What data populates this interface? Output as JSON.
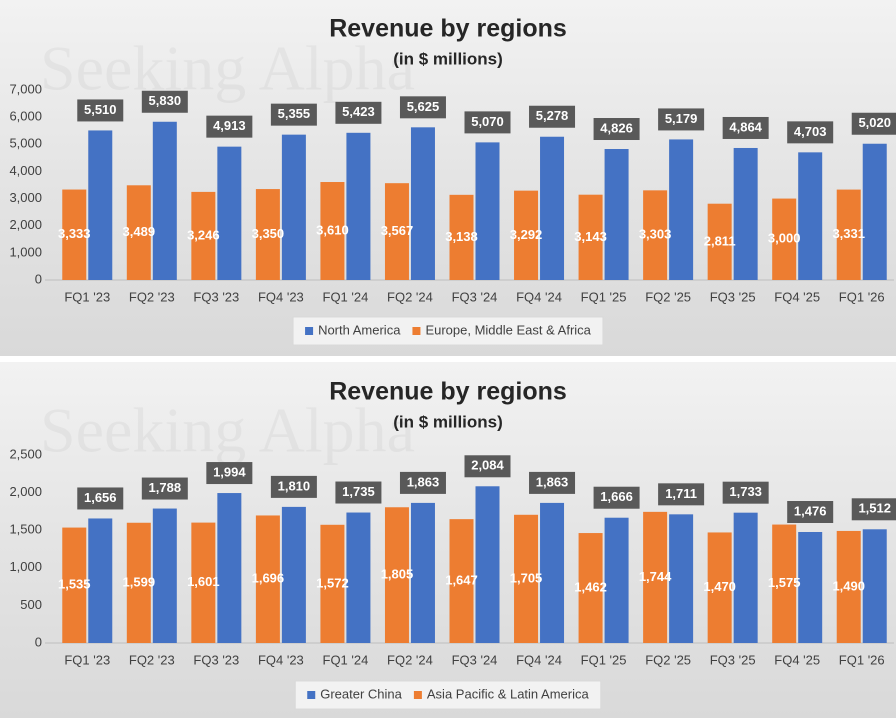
{
  "chart_data": [
    {
      "type": "bar",
      "title": "Revenue by regions",
      "subtitle": "(in $ millions)",
      "watermark": "Seeking Alpha",
      "categories": [
        "FQ1 '23",
        "FQ2 '23",
        "FQ3 '23",
        "FQ4 '23",
        "FQ1 '24",
        "FQ2 '24",
        "FQ3 '24",
        "FQ4 '24",
        "FQ1 '25",
        "FQ2 '25",
        "FQ3 '25",
        "FQ4 '25",
        "FQ1 '26"
      ],
      "series": [
        {
          "name": "North America",
          "color": "#4472c4",
          "values": [
            5510,
            5830,
            4913,
            5355,
            5423,
            5625,
            5070,
            5278,
            4826,
            5179,
            4864,
            4703,
            5020
          ],
          "value_labels": [
            "5,510",
            "5,830",
            "4,913",
            "5,355",
            "5,423",
            "5,625",
            "5,070",
            "5,278",
            "4,826",
            "5,179",
            "4,864",
            "4,703",
            "5,020"
          ]
        },
        {
          "name": "Europe, Middle East & Africa",
          "color": "#ed7d31",
          "values": [
            3333,
            3489,
            3246,
            3350,
            3610,
            3567,
            3138,
            3292,
            3143,
            3303,
            2811,
            3000,
            3331
          ],
          "value_labels": [
            "3,333",
            "3,489",
            "3,246",
            "3,350",
            "3,610",
            "3,567",
            "3,138",
            "3,292",
            "3,143",
            "3,303",
            "2,811",
            "3,000",
            "3,331"
          ]
        }
      ],
      "ylim": [
        0,
        7000
      ],
      "yticks": [
        0,
        {
          "value": 1000,
          "label": "1,000"
        },
        {
          "value": 2000,
          "label": "2,000"
        },
        {
          "value": 3000,
          "label": "3,000"
        },
        {
          "value": 4000,
          "label": "4,000"
        },
        {
          "value": 5000,
          "label": "5,000"
        },
        {
          "value": 6000,
          "label": "6,000"
        },
        {
          "value": 7000,
          "label": "7,000"
        }
      ],
      "grid": false,
      "legend": "bottom"
    },
    {
      "type": "bar",
      "title": "Revenue by regions",
      "subtitle": "(in $ millions)",
      "watermark": "Seeking Alpha",
      "categories": [
        "FQ1 '23",
        "FQ2 '23",
        "FQ3 '23",
        "FQ4 '23",
        "FQ1 '24",
        "FQ2 '24",
        "FQ3 '24",
        "FQ4 '24",
        "FQ1 '25",
        "FQ2 '25",
        "FQ3 '25",
        "FQ4 '25",
        "FQ1 '26"
      ],
      "series": [
        {
          "name": "Greater China",
          "color": "#4472c4",
          "values": [
            1656,
            1788,
            1994,
            1810,
            1735,
            1863,
            2084,
            1863,
            1666,
            1711,
            1733,
            1476,
            1512
          ],
          "value_labels": [
            "1,656",
            "1,788",
            "1,994",
            "1,810",
            "1,735",
            "1,863",
            "2,084",
            "1,863",
            "1,666",
            "1,711",
            "1,733",
            "1,476",
            "1,512"
          ]
        },
        {
          "name": "Asia Pacific & Latin America",
          "color": "#ed7d31",
          "values": [
            1535,
            1599,
            1601,
            1696,
            1572,
            1805,
            1647,
            1705,
            1462,
            1744,
            1470,
            1575,
            1490
          ],
          "value_labels": [
            "1,535",
            "1,599",
            "1,601",
            "1,696",
            "1,572",
            "1,805",
            "1,647",
            "1,705",
            "1,462",
            "1,744",
            "1,470",
            "1,575",
            "1,490"
          ]
        }
      ],
      "ylim": [
        0,
        2500
      ],
      "yticks": [
        0,
        500,
        {
          "value": 1000,
          "label": "1,000"
        },
        {
          "value": 1500,
          "label": "1,500"
        },
        {
          "value": 2000,
          "label": "2,000"
        },
        {
          "value": 2500,
          "label": "2,500"
        }
      ],
      "grid": false,
      "legend": "bottom"
    }
  ]
}
